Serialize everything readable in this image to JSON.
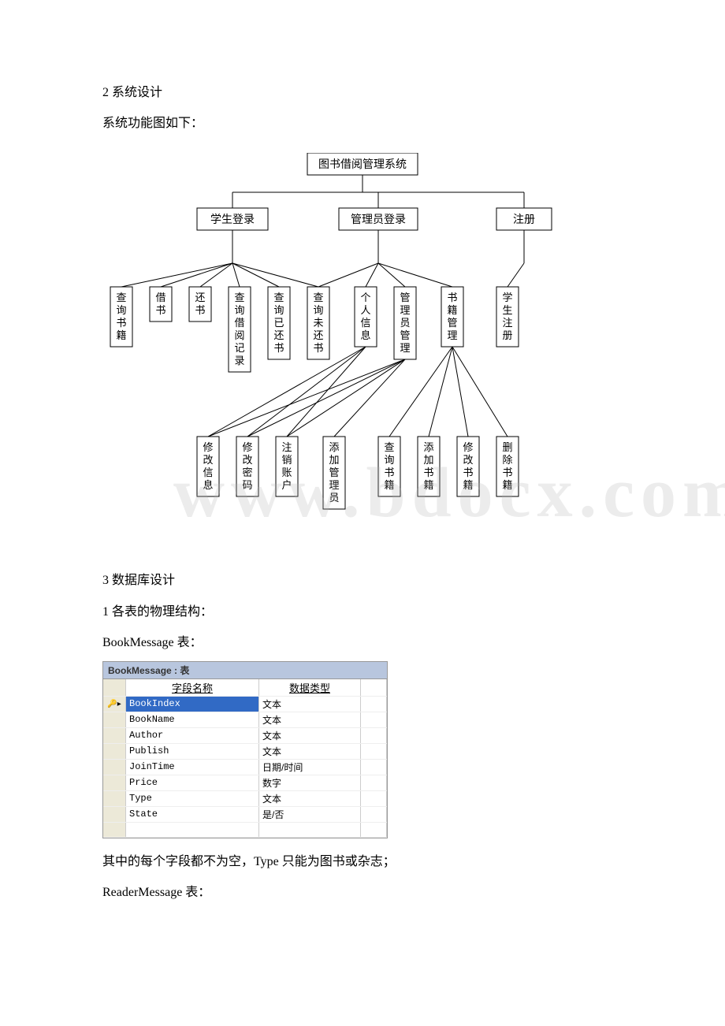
{
  "text": {
    "h1": "2 系统设计",
    "h1b": "系统功能图如下：",
    "h2": "3 数据库设计",
    "h2b": "1 各表的物理结构：",
    "bm_title": "BookMessage 表：",
    "bm_note": "其中的每个字段都不为空，Type 只能为图书或杂志；",
    "rm_title": "ReaderMessage 表："
  },
  "diagram": {
    "root": "图书借阅管理系统",
    "level2": [
      "学生登录",
      "管理员登录",
      "注册"
    ],
    "level3": [
      "查询书籍",
      "借书",
      "还书",
      "查询借阅记录",
      "查询已还书",
      "查询未还书",
      "个人信息",
      "管理员管理",
      "书籍管理",
      "学生注册"
    ],
    "level4": [
      "修改信息",
      "修改密码",
      "注销账户",
      "添加管理员",
      "查询书籍",
      "添加书籍",
      "修改书籍",
      "删除书籍"
    ],
    "box_stroke": "#000000",
    "box_fill": "#ffffff",
    "line_stroke": "#000000"
  },
  "bookmessage_table": {
    "window_title": "BookMessage : 表",
    "columns": [
      "字段名称",
      "数据类型"
    ],
    "rows": [
      [
        "BookIndex",
        "文本"
      ],
      [
        "BookName",
        "文本"
      ],
      [
        "Author",
        "文本"
      ],
      [
        "Publish",
        "文本"
      ],
      [
        "JoinTime",
        "日期/时间"
      ],
      [
        "Price",
        "数字"
      ],
      [
        "Type",
        "文本"
      ],
      [
        "State",
        "是/否"
      ]
    ],
    "pk_row": 0
  },
  "watermark": "www.bdocx.com"
}
